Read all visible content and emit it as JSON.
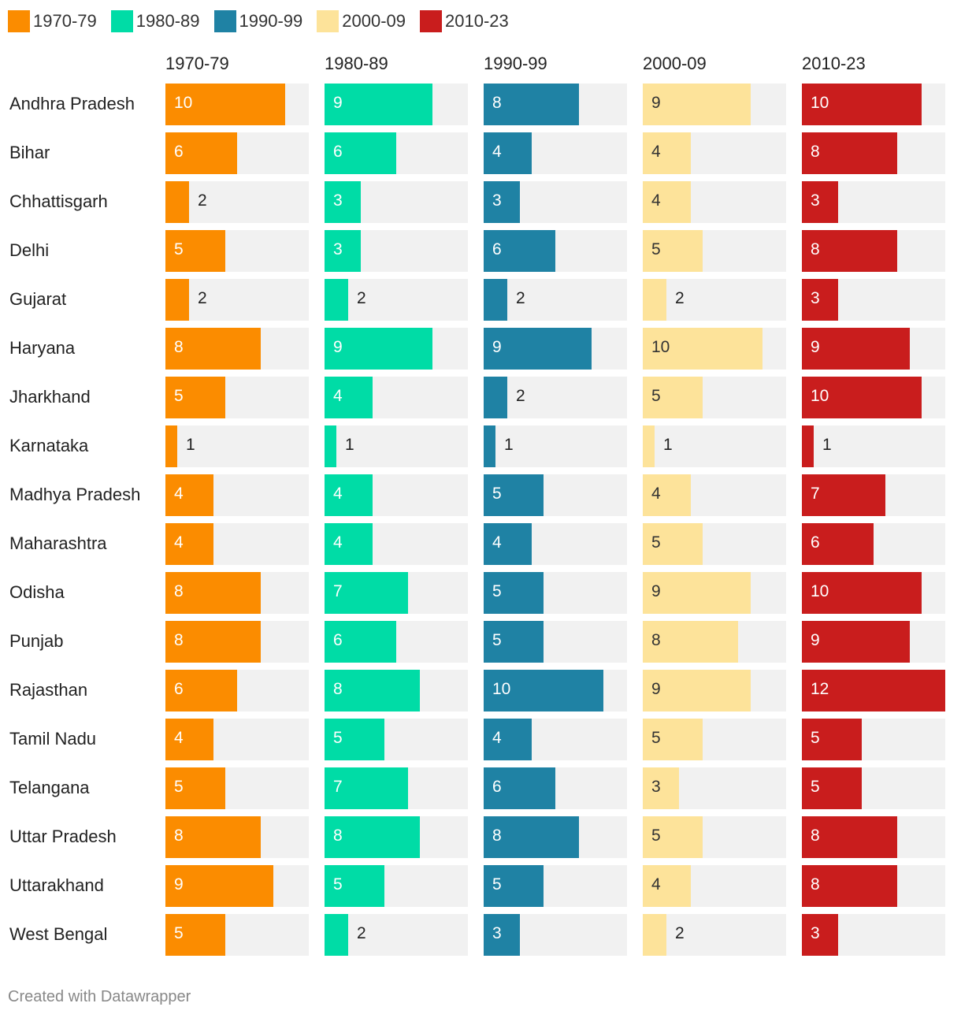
{
  "chart_data": {
    "type": "bar",
    "series": [
      {
        "name": "1970-79",
        "color": "#fb8c00",
        "values": [
          10,
          6,
          2,
          5,
          2,
          8,
          5,
          1,
          4,
          4,
          8,
          8,
          6,
          4,
          5,
          8,
          9,
          5
        ]
      },
      {
        "name": "1980-89",
        "color": "#00dca6",
        "values": [
          9,
          6,
          3,
          3,
          2,
          9,
          4,
          1,
          4,
          4,
          7,
          6,
          8,
          5,
          7,
          8,
          5,
          2
        ]
      },
      {
        "name": "1990-99",
        "color": "#1f82a4",
        "values": [
          8,
          4,
          3,
          6,
          2,
          9,
          2,
          1,
          5,
          4,
          5,
          5,
          10,
          4,
          6,
          8,
          5,
          3
        ]
      },
      {
        "name": "2000-09",
        "color": "#fde39a",
        "values": [
          9,
          4,
          4,
          5,
          2,
          10,
          5,
          1,
          4,
          5,
          9,
          8,
          9,
          5,
          3,
          5,
          4,
          2
        ]
      },
      {
        "name": "2010-23",
        "color": "#c91d1d",
        "values": [
          10,
          8,
          3,
          8,
          3,
          9,
          10,
          1,
          7,
          6,
          10,
          9,
          12,
          5,
          5,
          8,
          8,
          3
        ]
      }
    ],
    "categories": [
      "Andhra Pradesh",
      "Bihar",
      "Chhattisgarh",
      "Delhi",
      "Gujarat",
      "Haryana",
      "Jharkhand",
      "Karnataka",
      "Madhya Pradesh",
      "Maharashtra",
      "Odisha",
      "Punjab",
      "Rajasthan",
      "Tamil Nadu",
      "Telangana",
      "Uttar Pradesh",
      "Uttarakhand",
      "West Bengal"
    ],
    "xlim": [
      0,
      12
    ],
    "legend_position": "top-left",
    "grid": false
  },
  "footer": "Created with Datawrapper"
}
